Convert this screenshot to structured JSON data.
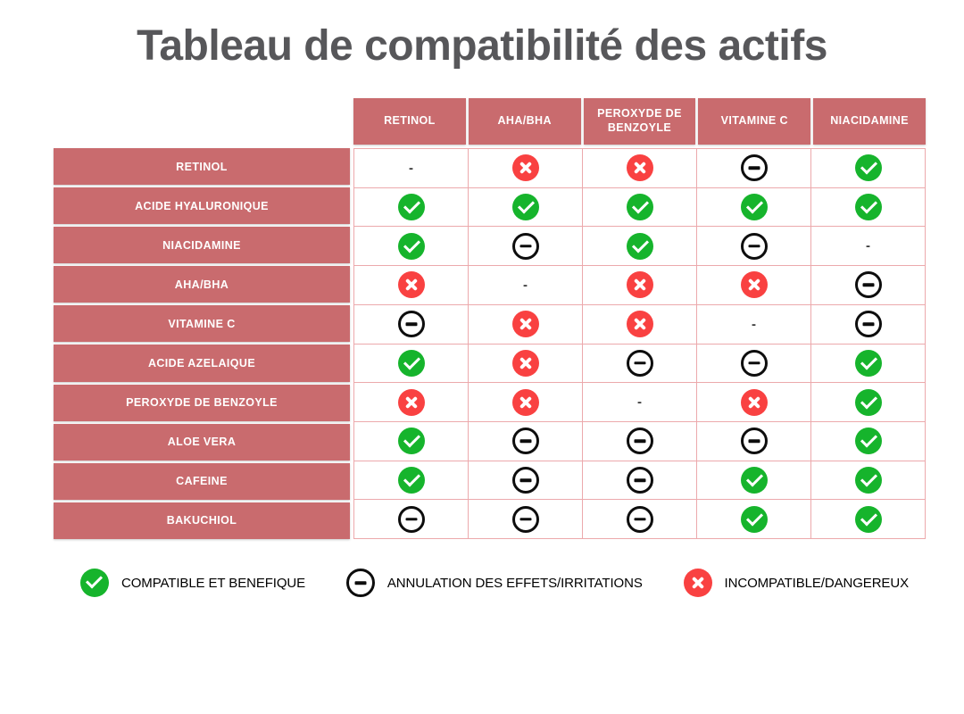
{
  "title": "Tableau de compatibilité des actifs",
  "colors": {
    "header_bg": "#C96B6E",
    "grid_line": "#ECA9AC",
    "check_green": "#16B42C",
    "cross_red": "#F94141",
    "minus_black": "#0D0D0D",
    "title_gray": "#57575A"
  },
  "icons": {
    "check": "check-circle-icon",
    "minus": "minus-circle-icon",
    "cross": "cross-circle-icon",
    "dash": "dash-mark"
  },
  "dash_symbol": "-",
  "chart_data": {
    "type": "table",
    "title": "Tableau de compatibilité des actifs",
    "columns": [
      "RETINOL",
      "AHA/BHA",
      "PEROXYDE DE BENZOYLE",
      "VITAMINE C",
      "NIACIDAMINE"
    ],
    "rows": [
      {
        "label": "RETINOL",
        "cells": [
          "dash",
          "cross",
          "cross",
          "minus",
          "check"
        ]
      },
      {
        "label": "ACIDE HYALURONIQUE",
        "cells": [
          "check",
          "check",
          "check",
          "check",
          "check"
        ]
      },
      {
        "label": "NIACIDAMINE",
        "cells": [
          "check",
          "minus",
          "check",
          "minus",
          "dash"
        ]
      },
      {
        "label": "AHA/BHA",
        "cells": [
          "cross",
          "dash",
          "cross",
          "cross",
          "minus"
        ]
      },
      {
        "label": "VITAMINE C",
        "cells": [
          "minus",
          "cross",
          "cross",
          "dash",
          "minus"
        ]
      },
      {
        "label": "ACIDE AZELAIQUE",
        "cells": [
          "check",
          "cross",
          "minus",
          "minus",
          "check"
        ]
      },
      {
        "label": "PEROXYDE DE BENZOYLE",
        "cells": [
          "cross",
          "cross",
          "dash",
          "cross",
          "check"
        ]
      },
      {
        "label": "ALOE VERA",
        "cells": [
          "check",
          "minus",
          "minus",
          "minus",
          "check"
        ]
      },
      {
        "label": "CAFEINE",
        "cells": [
          "check",
          "minus",
          "minus",
          "check",
          "check"
        ]
      },
      {
        "label": "BAKUCHIOL",
        "cells": [
          "minus",
          "minus",
          "minus",
          "check",
          "check"
        ]
      }
    ],
    "value_meanings": {
      "check": "compatible et benefique",
      "minus": "annulation des effets/irritations",
      "cross": "incompatible/dangereux",
      "dash": "non applicable (meme actif)"
    }
  },
  "legend": [
    {
      "icon": "check",
      "label": "COMPATIBLE ET BENEFIQUE"
    },
    {
      "icon": "minus",
      "label": "ANNULATION DES EFFETS/IRRITATIONS"
    },
    {
      "icon": "cross",
      "label": "INCOMPATIBLE/DANGEREUX"
    }
  ]
}
